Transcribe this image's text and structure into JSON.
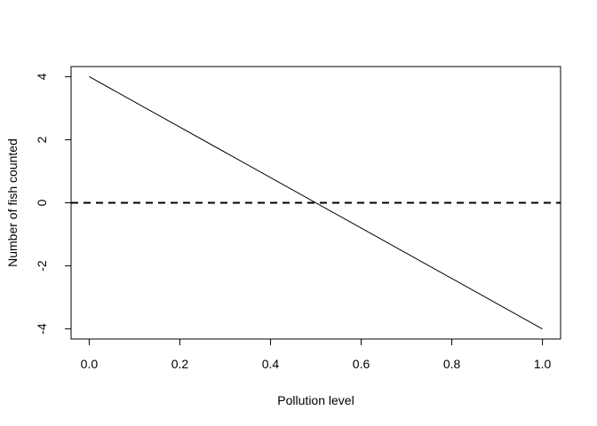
{
  "chart_data": {
    "type": "line",
    "title": "",
    "xlabel": "Pollution level",
    "ylabel": "Number of fish counted",
    "xlim": [
      -0.04,
      1.04
    ],
    "ylim": [
      -4.32,
      4.32
    ],
    "x_ticks": [
      0.0,
      0.2,
      0.4,
      0.6,
      0.8,
      1.0
    ],
    "x_tick_labels": [
      "0.0",
      "0.2",
      "0.4",
      "0.6",
      "0.8",
      "1.0"
    ],
    "y_ticks": [
      -4,
      -2,
      0,
      2,
      4
    ],
    "y_tick_labels": [
      "-4",
      "-2",
      "0",
      "2",
      "4"
    ],
    "grid": false,
    "legend": "none",
    "series": [
      {
        "x": [
          0.0,
          1.0
        ],
        "y": [
          4,
          -4
        ],
        "color": "#000000",
        "style": "solid"
      }
    ],
    "reference_lines": [
      {
        "orientation": "horizontal",
        "y": 0,
        "color": "#000000",
        "style": "dashed"
      }
    ]
  }
}
